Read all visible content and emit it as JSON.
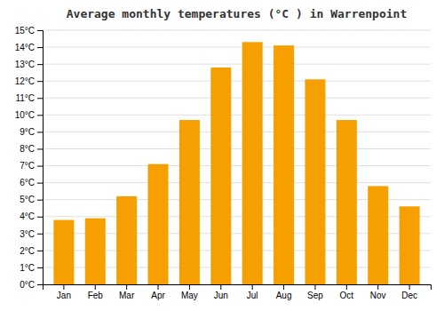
{
  "chart_data": {
    "type": "bar",
    "title": "Average monthly temperatures (°C ) in Warrenpoint",
    "categories": [
      "Jan",
      "Feb",
      "Mar",
      "Apr",
      "May",
      "Jun",
      "Jul",
      "Aug",
      "Sep",
      "Oct",
      "Nov",
      "Dec"
    ],
    "values": [
      3.8,
      3.9,
      5.2,
      7.1,
      9.7,
      12.8,
      14.3,
      14.1,
      12.1,
      9.7,
      5.8,
      4.6
    ],
    "color": "#F5A000",
    "ylim": [
      0,
      15
    ],
    "yticks": [
      {
        "value": 0,
        "label": "0°C"
      },
      {
        "value": 1,
        "label": "1°C"
      },
      {
        "value": 2,
        "label": "2°C"
      },
      {
        "value": 3,
        "label": "3°C"
      },
      {
        "value": 4,
        "label": "4°C"
      },
      {
        "value": 5,
        "label": "5°C"
      },
      {
        "value": 6,
        "label": "6°C"
      },
      {
        "value": 7,
        "label": "7°C"
      },
      {
        "value": 8,
        "label": "8°C"
      },
      {
        "value": 9,
        "label": "9°C"
      },
      {
        "value": 10,
        "label": "10°C"
      },
      {
        "value": 11,
        "label": "11°C"
      },
      {
        "value": 12,
        "label": "12°C"
      },
      {
        "value": 13,
        "label": "13°C"
      },
      {
        "value": 14,
        "label": "14°C"
      },
      {
        "value": 15,
        "label": "15°C"
      }
    ],
    "grid": true
  }
}
